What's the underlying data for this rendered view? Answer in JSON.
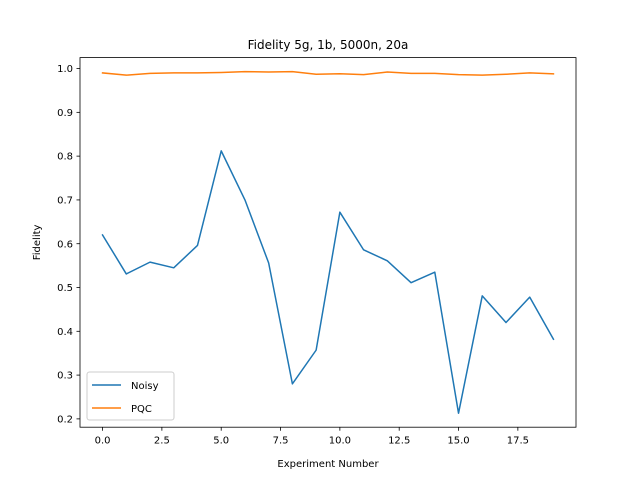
{
  "chart_data": {
    "type": "line",
    "title": "Fidelity 5g, 1b, 5000n, 20a",
    "xlabel": "Experiment Number",
    "ylabel": "Fidelity",
    "xlim": [
      -0.95,
      19.95
    ],
    "ylim": [
      0.181,
      1.025
    ],
    "xticks": [
      0.0,
      2.5,
      5.0,
      7.5,
      10.0,
      12.5,
      15.0,
      17.5
    ],
    "xtick_labels": [
      "0.0",
      "2.5",
      "5.0",
      "7.5",
      "10.0",
      "12.5",
      "15.0",
      "17.5"
    ],
    "yticks": [
      0.2,
      0.3,
      0.4,
      0.5,
      0.6,
      0.7,
      0.8,
      0.9,
      1.0
    ],
    "ytick_labels": [
      "0.2",
      "0.3",
      "0.4",
      "0.5",
      "0.6",
      "0.7",
      "0.8",
      "0.9",
      "1.0"
    ],
    "grid": false,
    "legend_position": "lower-left",
    "x": [
      0,
      1,
      2,
      3,
      4,
      5,
      6,
      7,
      8,
      9,
      10,
      11,
      12,
      13,
      14,
      15,
      16,
      17,
      18,
      19
    ],
    "series": [
      {
        "name": "Noisy",
        "color": "#1f77b4",
        "values": [
          0.62,
          0.531,
          0.558,
          0.545,
          0.596,
          0.812,
          0.7,
          0.556,
          0.28,
          0.357,
          0.672,
          0.586,
          0.561,
          0.511,
          0.535,
          0.213,
          0.481,
          0.42,
          0.478,
          0.382
        ]
      },
      {
        "name": "PQC",
        "color": "#ff7f0e",
        "values": [
          0.99,
          0.985,
          0.989,
          0.99,
          0.99,
          0.991,
          0.993,
          0.992,
          0.993,
          0.987,
          0.988,
          0.986,
          0.992,
          0.989,
          0.989,
          0.986,
          0.985,
          0.987,
          0.99,
          0.988
        ]
      }
    ]
  }
}
